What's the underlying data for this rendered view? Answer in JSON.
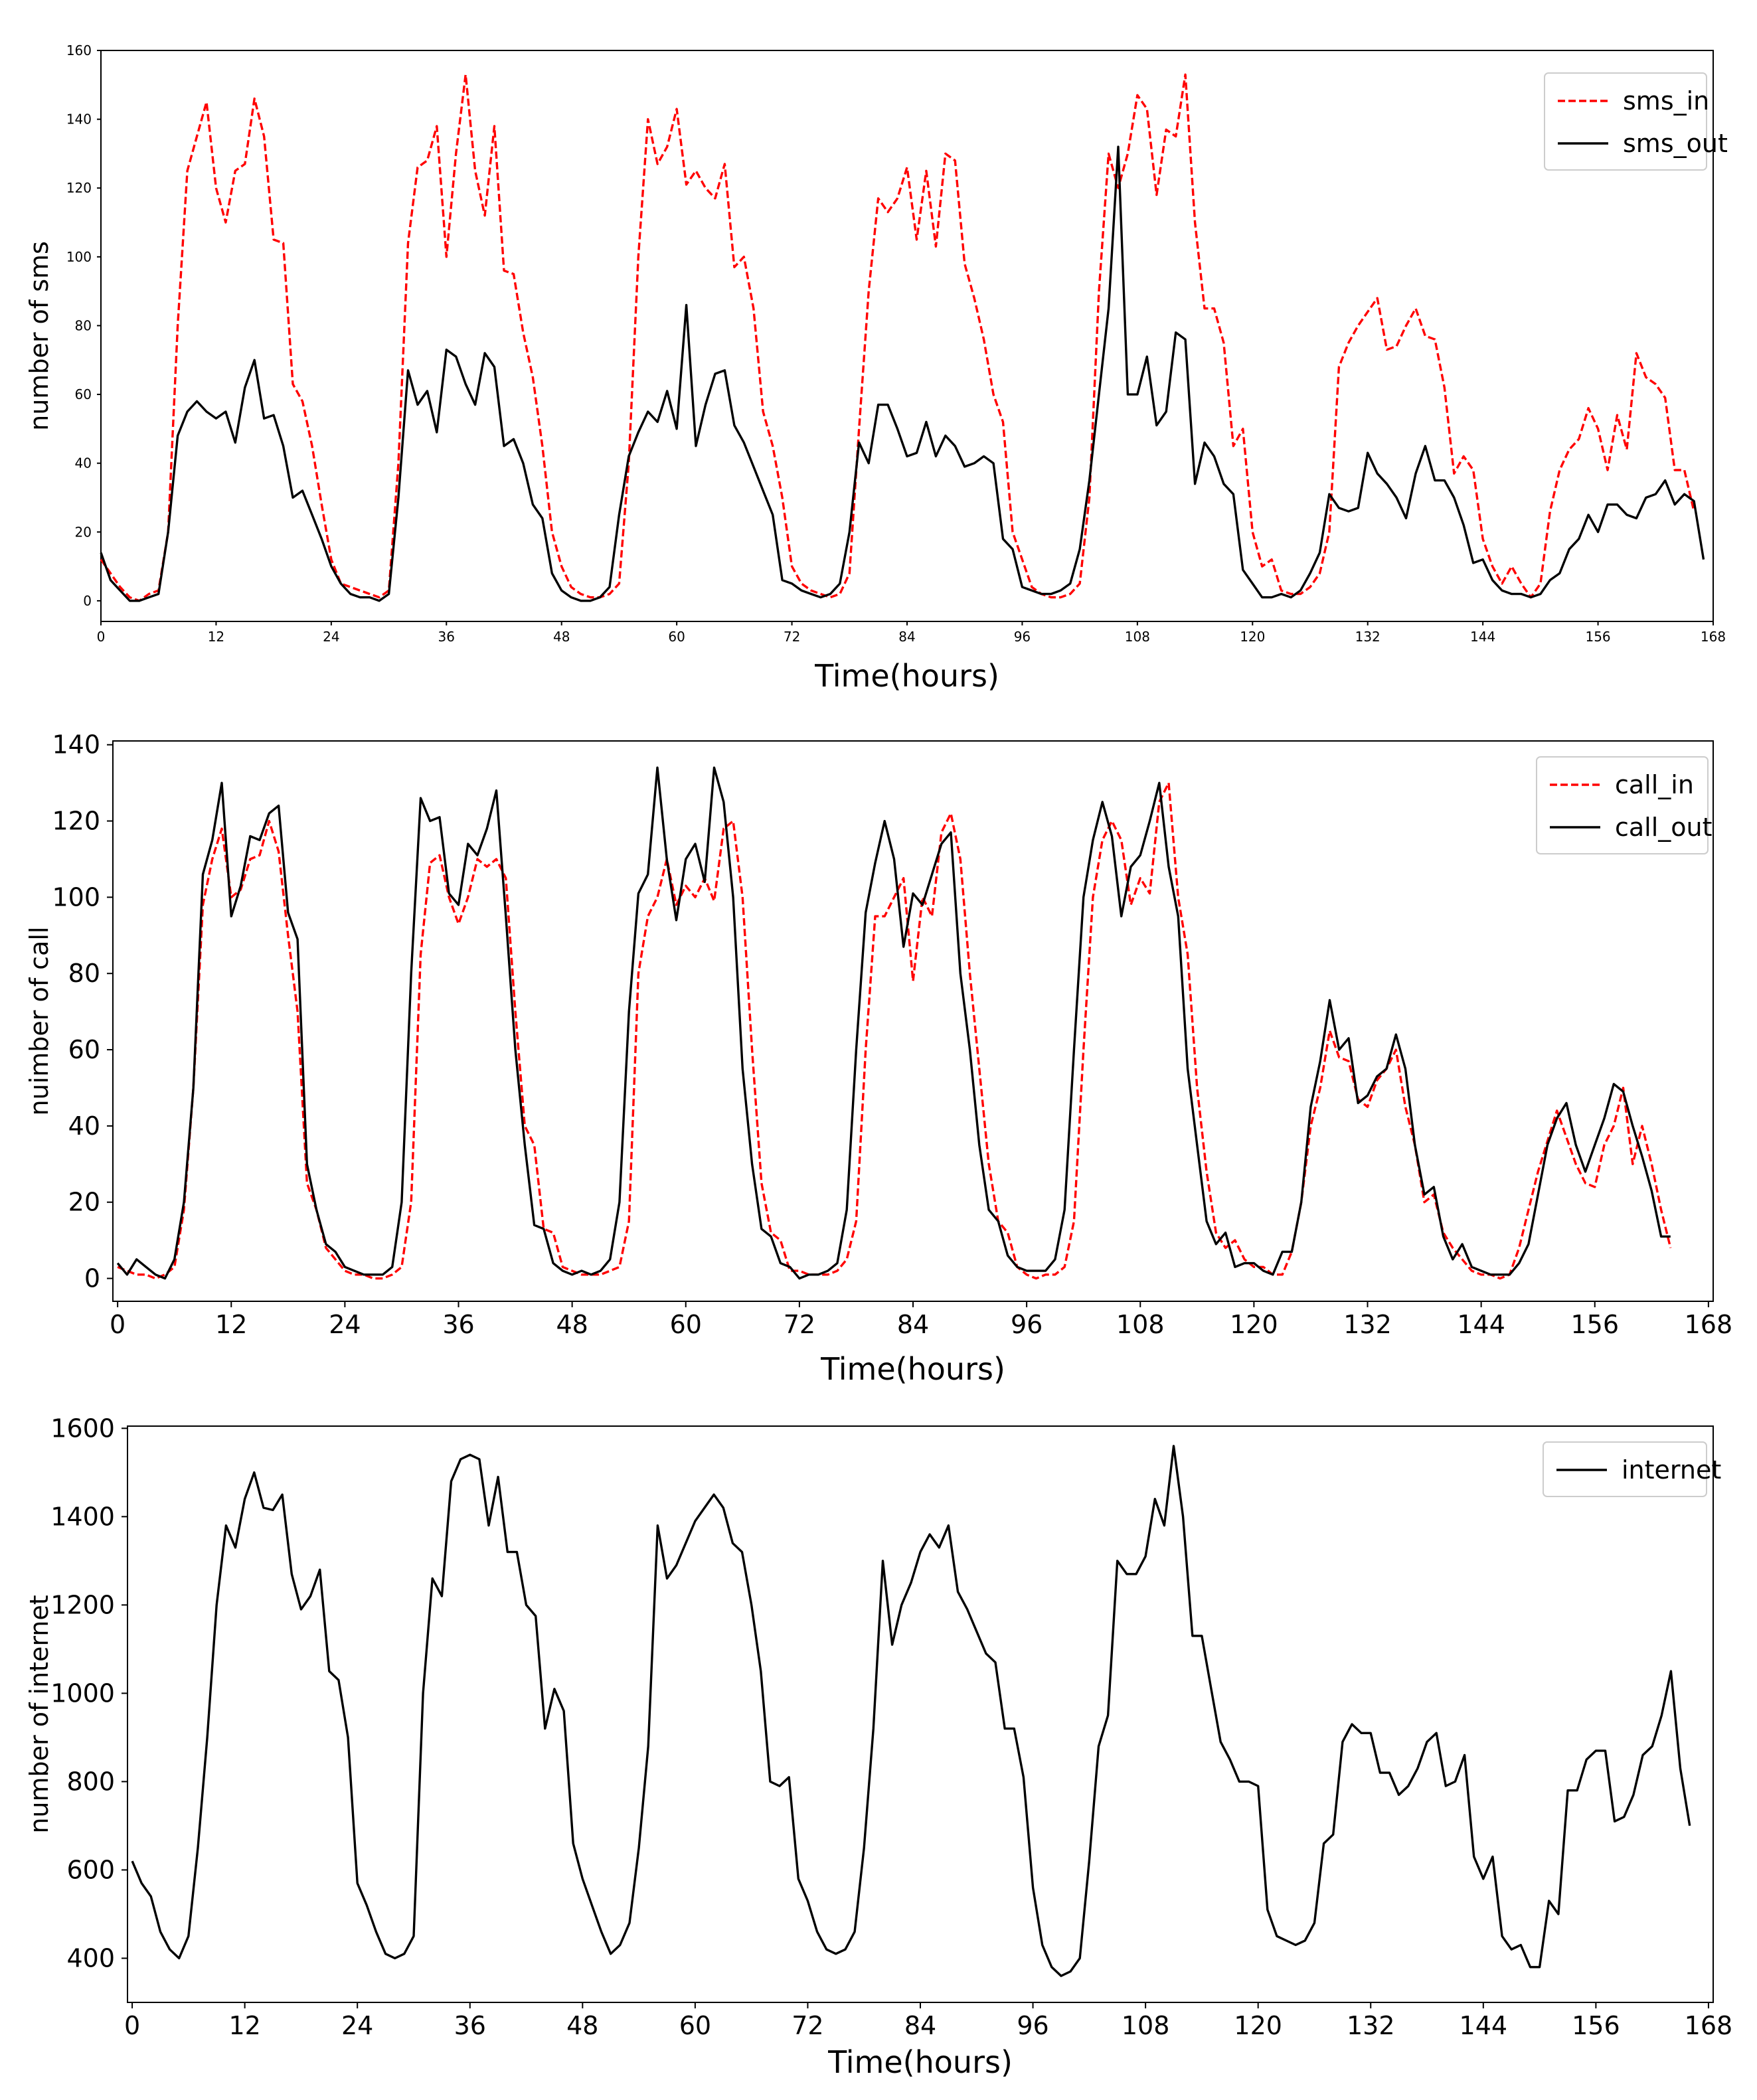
{
  "chart_data": [
    {
      "type": "line",
      "xlabel": "Time(hours)",
      "ylabel": "number of sms",
      "xlim": [
        0,
        168
      ],
      "ylim": [
        -6,
        160
      ],
      "xticks": [
        0,
        12,
        24,
        36,
        48,
        60,
        72,
        84,
        96,
        108,
        120,
        132,
        144,
        156,
        168
      ],
      "yticks": [
        0,
        20,
        40,
        60,
        80,
        100,
        120,
        140,
        160
      ],
      "legend": "top-right",
      "series": [
        {
          "name": "sms_in",
          "color": "#ff0000",
          "dash": "dashed",
          "values": [
            12,
            8,
            4,
            1,
            0,
            2,
            3,
            20,
            80,
            125,
            135,
            145,
            120,
            110,
            125,
            127,
            146,
            135,
            105,
            104,
            63,
            58,
            45,
            28,
            12,
            5,
            4,
            3,
            2,
            1,
            3,
            40,
            104,
            126,
            128,
            138,
            100,
            130,
            153,
            125,
            112,
            138,
            96,
            95,
            78,
            65,
            45,
            20,
            10,
            4,
            2,
            1,
            1,
            2,
            5,
            40,
            100,
            140,
            127,
            132,
            143,
            121,
            125,
            120,
            117,
            127,
            97,
            100,
            85,
            55,
            45,
            30,
            10,
            5,
            3,
            2,
            1,
            2,
            8,
            50,
            90,
            117,
            113,
            117,
            126,
            105,
            125,
            103,
            130,
            128,
            98,
            88,
            76,
            60,
            52,
            20,
            12,
            4,
            2,
            1,
            1,
            2,
            5,
            30,
            90,
            130,
            120,
            130,
            147,
            143,
            118,
            137,
            135,
            153,
            110,
            85,
            85,
            75,
            45,
            50,
            20,
            10,
            12,
            3,
            2,
            2,
            4,
            8,
            20,
            68,
            75,
            80,
            84,
            88,
            73,
            74,
            80,
            85,
            77,
            76,
            62,
            37,
            42,
            38,
            18,
            10,
            5,
            10,
            5,
            1,
            5,
            26,
            38,
            44,
            47,
            56,
            50,
            38,
            54,
            44,
            72,
            65,
            63,
            59,
            38,
            38,
            26
          ]
        },
        {
          "name": "sms_out",
          "color": "#000000",
          "dash": "solid",
          "values": [
            14,
            6,
            3,
            0,
            0,
            1,
            2,
            20,
            48,
            55,
            58,
            55,
            53,
            55,
            46,
            62,
            70,
            53,
            54,
            45,
            30,
            32,
            25,
            18,
            10,
            5,
            2,
            1,
            1,
            0,
            2,
            30,
            67,
            57,
            61,
            49,
            73,
            71,
            63,
            57,
            72,
            68,
            45,
            47,
            40,
            28,
            24,
            8,
            3,
            1,
            0,
            0,
            1,
            4,
            25,
            42,
            49,
            55,
            52,
            61,
            50,
            86,
            45,
            57,
            66,
            67,
            51,
            46,
            39,
            32,
            25,
            6,
            5,
            3,
            2,
            1,
            2,
            5,
            20,
            46,
            40,
            57,
            57,
            50,
            42,
            43,
            52,
            42,
            48,
            45,
            39,
            40,
            42,
            40,
            18,
            15,
            4,
            3,
            2,
            2,
            3,
            5,
            15,
            35,
            60,
            85,
            132,
            60,
            60,
            71,
            51,
            55,
            78,
            76,
            34,
            46,
            42,
            34,
            31,
            9,
            5,
            1,
            1,
            2,
            1,
            3,
            8,
            14,
            31,
            27,
            26,
            27,
            43,
            37,
            34,
            30,
            24,
            37,
            45,
            35,
            35,
            30,
            22,
            11,
            12,
            6,
            3,
            2,
            2,
            1,
            2,
            6,
            8,
            15,
            18,
            25,
            20,
            28,
            28,
            25,
            24,
            30,
            31,
            35,
            28,
            31,
            29,
            12
          ]
        }
      ]
    },
    {
      "type": "line",
      "xlabel": "Time(hours)",
      "ylabel": "nuimber of call",
      "xlim": [
        -0.5,
        168.5
      ],
      "ylim": [
        -6,
        141
      ],
      "xticks": [
        0,
        12,
        24,
        36,
        48,
        60,
        72,
        84,
        96,
        108,
        120,
        132,
        144,
        156,
        168
      ],
      "yticks": [
        0,
        20,
        40,
        60,
        80,
        100,
        120,
        140
      ],
      "legend": "top-right",
      "series": [
        {
          "name": "call_in",
          "color": "#ff0000",
          "dash": "dashed",
          "values": [
            3,
            2,
            1,
            1,
            0,
            1,
            3,
            18,
            50,
            98,
            110,
            118,
            100,
            102,
            110,
            111,
            120,
            112,
            90,
            70,
            25,
            18,
            8,
            5,
            2,
            1,
            1,
            0,
            0,
            1,
            3,
            20,
            85,
            109,
            111,
            100,
            93,
            100,
            110,
            108,
            110,
            105,
            70,
            40,
            35,
            13,
            12,
            3,
            2,
            1,
            1,
            1,
            2,
            3,
            15,
            80,
            95,
            100,
            110,
            98,
            103,
            100,
            105,
            99,
            118,
            120,
            100,
            60,
            25,
            12,
            10,
            2,
            2,
            1,
            1,
            1,
            2,
            5,
            15,
            60,
            95,
            95,
            100,
            105,
            78,
            100,
            95,
            117,
            122,
            110,
            80,
            55,
            30,
            15,
            12,
            3,
            1,
            0,
            1,
            1,
            3,
            15,
            60,
            100,
            115,
            120,
            115,
            98,
            105,
            101,
            125,
            130,
            100,
            85,
            50,
            28,
            12,
            8,
            10,
            5,
            3,
            3,
            1,
            1,
            7,
            20,
            40,
            50,
            65,
            58,
            57,
            47,
            45,
            52,
            55,
            60,
            45,
            35,
            20,
            22,
            12,
            8,
            5,
            2,
            1,
            1,
            0,
            1,
            8,
            18,
            28,
            36,
            44,
            37,
            30,
            25,
            24,
            35,
            40,
            50,
            30,
            40,
            30,
            18,
            8
          ]
        },
        {
          "name": "call_out",
          "color": "#000000",
          "dash": "solid",
          "values": [
            4,
            1,
            5,
            3,
            1,
            0,
            5,
            20,
            50,
            106,
            115,
            130,
            95,
            103,
            116,
            115,
            122,
            124,
            96,
            89,
            30,
            18,
            9,
            7,
            3,
            2,
            1,
            1,
            1,
            3,
            20,
            80,
            126,
            120,
            121,
            101,
            98,
            114,
            111,
            118,
            128,
            95,
            60,
            35,
            14,
            13,
            4,
            2,
            1,
            2,
            1,
            2,
            5,
            20,
            70,
            101,
            106,
            134,
            110,
            94,
            110,
            114,
            104,
            134,
            125,
            100,
            55,
            30,
            13,
            11,
            4,
            3,
            0,
            1,
            1,
            2,
            4,
            18,
            60,
            96,
            109,
            120,
            110,
            87,
            101,
            98,
            106,
            114,
            117,
            80,
            60,
            35,
            18,
            15,
            6,
            3,
            2,
            2,
            2,
            5,
            18,
            60,
            100,
            115,
            125,
            116,
            95,
            108,
            111,
            120,
            130,
            108,
            95,
            55,
            35,
            15,
            9,
            12,
            3,
            4,
            4,
            2,
            1,
            7,
            7,
            20,
            45,
            57,
            73,
            60,
            63,
            46,
            48,
            53,
            55,
            64,
            55,
            35,
            22,
            24,
            11,
            5,
            9,
            3,
            2,
            1,
            1,
            1,
            4,
            9,
            22,
            35,
            42,
            46,
            35,
            28,
            35,
            42,
            51,
            49,
            40,
            32,
            23,
            11,
            11
          ]
        }
      ]
    },
    {
      "type": "line",
      "xlabel": "Time(hours)",
      "ylabel": "number of internet",
      "xlim": [
        -0.5,
        168.5
      ],
      "ylim": [
        300,
        1605
      ],
      "xticks": [
        0,
        12,
        24,
        36,
        48,
        60,
        72,
        84,
        96,
        108,
        120,
        132,
        144,
        156,
        168
      ],
      "yticks": [
        400,
        600,
        800,
        1000,
        1200,
        1400,
        1600
      ],
      "legend": "top-right",
      "series": [
        {
          "name": "internet",
          "color": "#000000",
          "dash": "solid",
          "values": [
            620,
            570,
            540,
            460,
            420,
            400,
            450,
            650,
            900,
            1200,
            1380,
            1330,
            1440,
            1500,
            1420,
            1415,
            1450,
            1270,
            1190,
            1220,
            1280,
            1050,
            1030,
            900,
            570,
            520,
            460,
            410,
            400,
            410,
            450,
            1000,
            1260,
            1220,
            1480,
            1530,
            1540,
            1530,
            1380,
            1490,
            1320,
            1320,
            1200,
            1175,
            920,
            1010,
            960,
            660,
            580,
            520,
            460,
            410,
            430,
            480,
            650,
            880,
            1380,
            1260,
            1290,
            1340,
            1390,
            1420,
            1450,
            1420,
            1340,
            1320,
            1200,
            1050,
            800,
            790,
            810,
            580,
            530,
            460,
            420,
            410,
            420,
            460,
            650,
            920,
            1300,
            1110,
            1200,
            1250,
            1320,
            1360,
            1330,
            1380,
            1230,
            1190,
            1140,
            1090,
            1070,
            920,
            920,
            810,
            560,
            430,
            380,
            360,
            370,
            400,
            620,
            880,
            950,
            1300,
            1270,
            1270,
            1310,
            1440,
            1380,
            1560,
            1400,
            1130,
            1130,
            1010,
            890,
            850,
            800,
            800,
            790,
            510,
            450,
            440,
            430,
            440,
            480,
            660,
            680,
            890,
            930,
            910,
            910,
            820,
            820,
            770,
            790,
            830,
            890,
            910,
            790,
            800,
            860,
            630,
            580,
            630,
            450,
            420,
            430,
            380,
            380,
            530,
            500,
            780,
            780,
            850,
            870,
            870,
            710,
            720,
            770,
            860,
            880,
            950,
            1050,
            830,
            700
          ]
        }
      ]
    }
  ]
}
